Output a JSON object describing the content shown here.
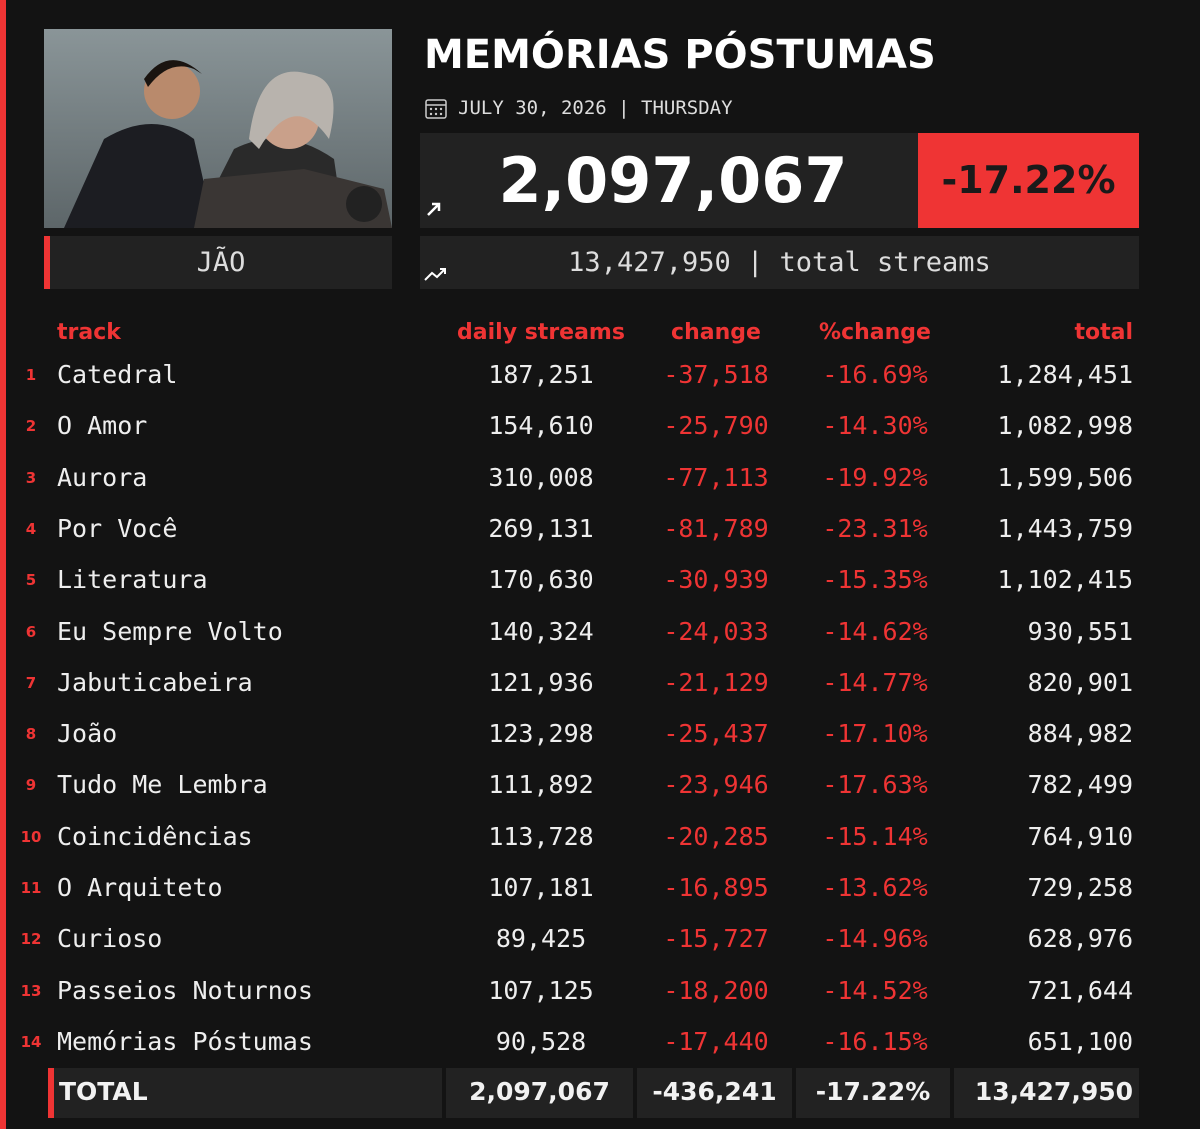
{
  "header": {
    "title": "MEMÓRIAS PÓSTUMAS",
    "date": "JULY 30, 2026 | THURSDAY",
    "artist": "JÃO",
    "daily_streams": "2,097,067",
    "change_pct": "-17.22%",
    "total_streams": "13,427,950 | total streams"
  },
  "table": {
    "columns": [
      "track",
      "daily streams",
      "change",
      "%change",
      "total"
    ],
    "rows": [
      [
        "1",
        "Catedral",
        "187,251",
        "-37,518",
        "-16.69%",
        "1,284,451"
      ],
      [
        "2",
        "O Amor",
        "154,610",
        "-25,790",
        "-14.30%",
        "1,082,998"
      ],
      [
        "3",
        "Aurora",
        "310,008",
        "-77,113",
        "-19.92%",
        "1,599,506"
      ],
      [
        "4",
        "Por Você",
        "269,131",
        "-81,789",
        "-23.31%",
        "1,443,759"
      ],
      [
        "5",
        "Literatura",
        "170,630",
        "-30,939",
        "-15.35%",
        "1,102,415"
      ],
      [
        "6",
        "Eu Sempre Volto",
        "140,324",
        "-24,033",
        "-14.62%",
        "930,551"
      ],
      [
        "7",
        "Jabuticabeira",
        "121,936",
        "-21,129",
        "-14.77%",
        "820,901"
      ],
      [
        "8",
        "João",
        "123,298",
        "-25,437",
        "-17.10%",
        "884,982"
      ],
      [
        "9",
        "Tudo Me Lembra",
        "111,892",
        "-23,946",
        "-17.63%",
        "782,499"
      ],
      [
        "10",
        "Coincidências",
        "113,728",
        "-20,285",
        "-15.14%",
        "764,910"
      ],
      [
        "11",
        "O Arquiteto",
        "107,181",
        "-16,895",
        "-13.62%",
        "729,258"
      ],
      [
        "12",
        "Curioso",
        "89,425",
        "-15,727",
        "-14.96%",
        "628,976"
      ],
      [
        "13",
        "Passeios Noturnos",
        "107,125",
        "-18,200",
        "-14.52%",
        "721,644"
      ],
      [
        "14",
        "Memórias Póstumas",
        "90,528",
        "-17,440",
        "-16.15%",
        "651,100"
      ]
    ],
    "total": [
      "TOTAL",
      "2,097,067",
      "-436,241",
      "-17.22%",
      "13,427,950"
    ]
  }
}
